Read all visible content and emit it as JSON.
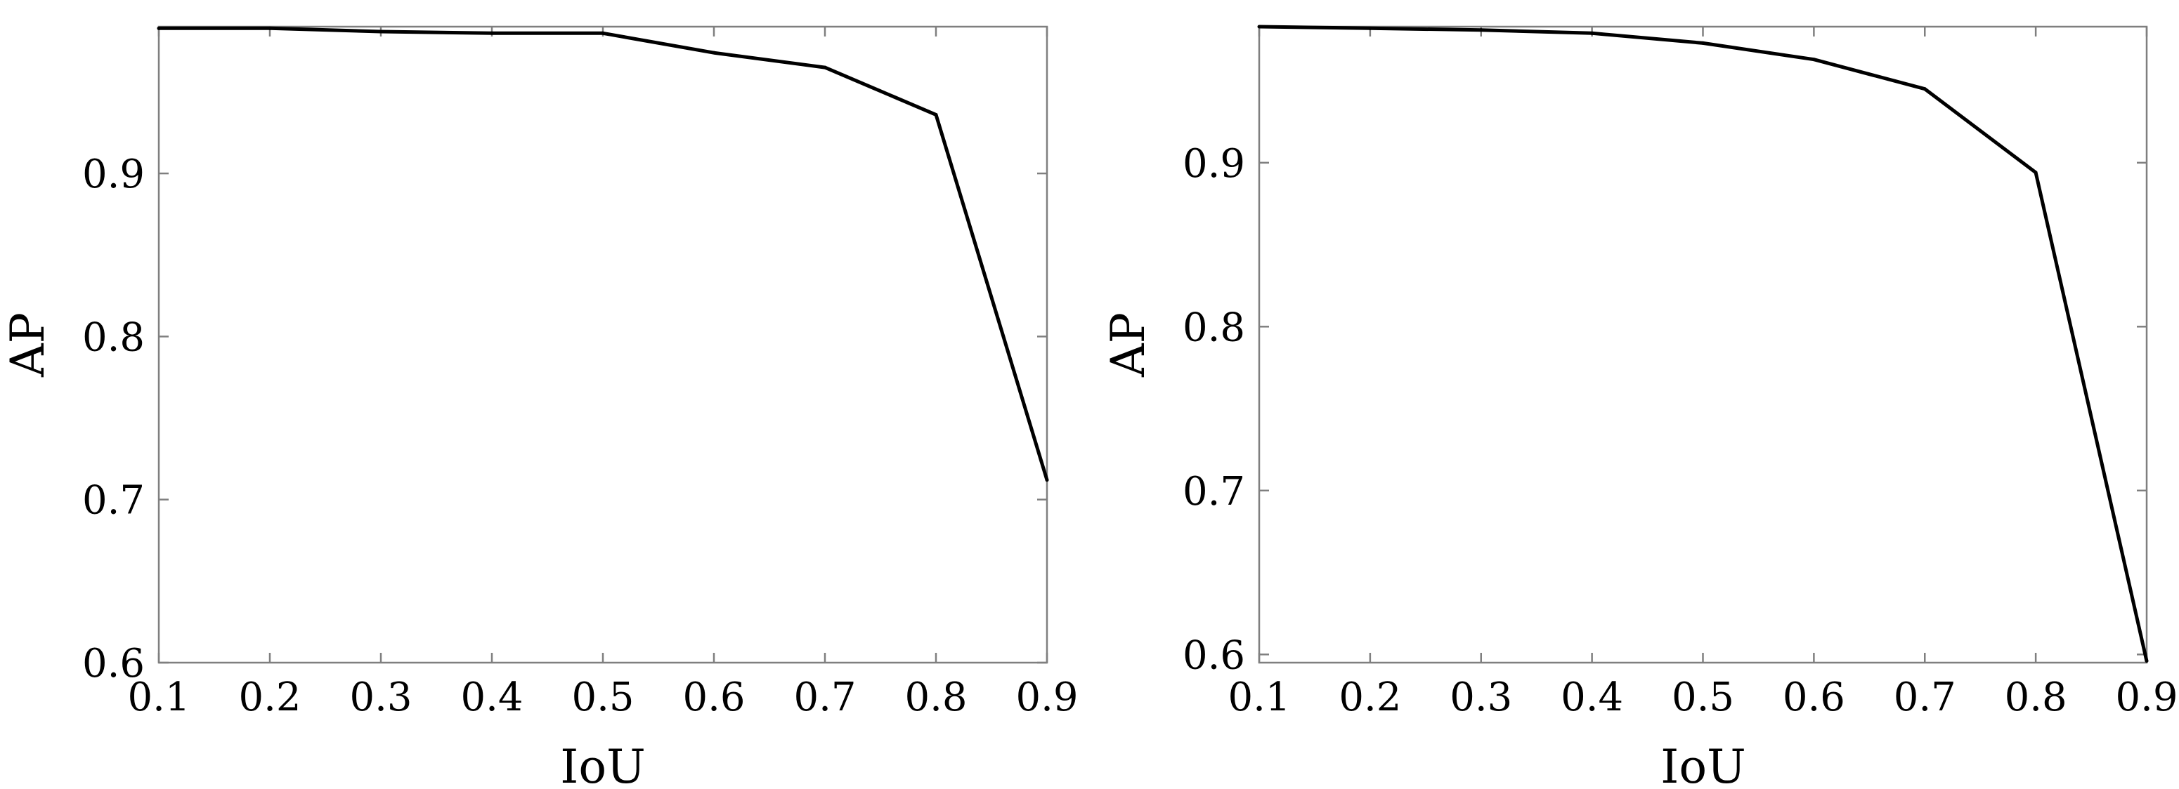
{
  "chart_data": [
    {
      "type": "line",
      "title": "",
      "xlabel": "IoU",
      "ylabel": "AP",
      "xlim": [
        0.1,
        0.9
      ],
      "ylim": [
        0.6,
        0.99
      ],
      "xticks": [
        "0.1",
        "0.2",
        "0.3",
        "0.4",
        "0.5",
        "0.6",
        "0.7",
        "0.8",
        "0.9"
      ],
      "yticks": [
        "0.6",
        "0.7",
        "0.8",
        "0.9"
      ],
      "grid": false,
      "series": [
        {
          "x": [
            0.1,
            0.2,
            0.3,
            0.4,
            0.5,
            0.6,
            0.7,
            0.8,
            0.9
          ],
          "y": [
            0.989,
            0.989,
            0.987,
            0.986,
            0.986,
            0.974,
            0.965,
            0.936,
            0.712
          ],
          "color": "#000000"
        }
      ]
    },
    {
      "type": "line",
      "title": "",
      "xlabel": "IoU",
      "ylabel": "AP",
      "xlim": [
        0.1,
        0.9
      ],
      "ylim": [
        0.595,
        0.983
      ],
      "xticks": [
        "0.1",
        "0.2",
        "0.3",
        "0.4",
        "0.5",
        "0.6",
        "0.7",
        "0.8",
        "0.9"
      ],
      "yticks": [
        "0.6",
        "0.7",
        "0.8",
        "0.9"
      ],
      "grid": false,
      "series": [
        {
          "x": [
            0.1,
            0.2,
            0.3,
            0.4,
            0.5,
            0.6,
            0.7,
            0.8,
            0.9
          ],
          "y": [
            0.983,
            0.982,
            0.981,
            0.979,
            0.973,
            0.963,
            0.945,
            0.894,
            0.596
          ],
          "color": "#000000"
        }
      ]
    }
  ]
}
